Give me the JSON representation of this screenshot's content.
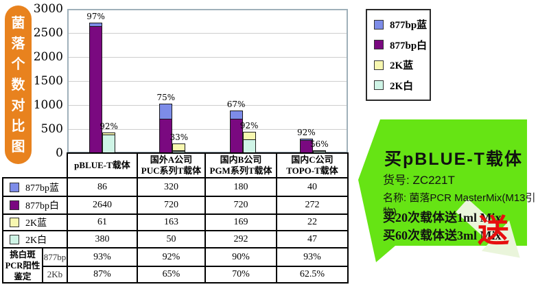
{
  "banner": {
    "text": "菌落个数对比图"
  },
  "chart_data": {
    "type": "bar",
    "stacked": true,
    "title": "菌落个数对比图",
    "ylabel": "菌落个数",
    "ylim": [
      0,
      3000
    ],
    "ytick_interval": 500,
    "yticks": [
      "0",
      "500",
      "1000",
      "1500",
      "2000",
      "2500",
      "3000"
    ],
    "grid": true,
    "categories": [
      "pBLUE-T载体",
      "国外A公司 PUC系列T载体",
      "国内B公司 PGM系列T载体",
      "国内C公司 TOPO-T载体"
    ],
    "category_lines": [
      [
        "pBLUE-T载体"
      ],
      [
        "国外A公司",
        "PUC系列T载体"
      ],
      [
        "国内B公司",
        "PGM系列T载体"
      ],
      [
        "国内C公司",
        "TOPO-T载体"
      ]
    ],
    "series": [
      {
        "name": "877bp蓝",
        "color": "#7D8CE8",
        "stack": "877bp",
        "values": [
          86,
          320,
          180,
          40
        ]
      },
      {
        "name": "877bp白",
        "color": "#7A0980",
        "stack": "877bp",
        "values": [
          2640,
          720,
          720,
          272
        ]
      },
      {
        "name": "2K蓝",
        "color": "#F7F7B0",
        "stack": "2K",
        "values": [
          61,
          163,
          169,
          22
        ]
      },
      {
        "name": "2K白",
        "color": "#CFF4E6",
        "stack": "2K",
        "values": [
          380,
          50,
          292,
          47
        ]
      }
    ],
    "percent_labels": [
      [
        "97%",
        "92%"
      ],
      [
        "75%",
        "33%"
      ],
      [
        "67%",
        "92%"
      ],
      [
        "92%",
        "56%"
      ]
    ],
    "legend_position": "top-right"
  },
  "legend": {
    "items": [
      {
        "label": "877bp蓝",
        "color": "#7D8CE8"
      },
      {
        "label": "877bp白",
        "color": "#7A0980"
      },
      {
        "label": "2K蓝",
        "color": "#F7F7B0"
      },
      {
        "label": "2K白",
        "color": "#CFF4E6"
      }
    ]
  },
  "table": {
    "column_headers": [
      "pBLUE-T载体",
      "国外A公司 PUC系列T载体",
      "国内B公司 PGM系列T载体",
      "国内C公司 TOPO-T载体"
    ],
    "rows": [
      {
        "label": "877bp蓝",
        "swatch": "#7D8CE8",
        "values": [
          "86",
          "320",
          "180",
          "40"
        ]
      },
      {
        "label": "877bp白",
        "swatch": "#7A0980",
        "values": [
          "2640",
          "720",
          "720",
          "272"
        ]
      },
      {
        "label": "2K蓝",
        "swatch": "#F7F7B0",
        "values": [
          "61",
          "163",
          "169",
          "22"
        ]
      },
      {
        "label": "2K白",
        "swatch": "#CFF4E6",
        "values": [
          "380",
          "50",
          "292",
          "47"
        ]
      }
    ],
    "pcr_group_label": "挑白斑PCR阳性鉴定",
    "pcr_group_label_lines": [
      "挑白斑",
      "PCR阳性",
      "鉴定"
    ],
    "pcr_rows": [
      {
        "label": "877bp",
        "values": [
          "93%",
          "92%",
          "90%",
          "93%"
        ]
      },
      {
        "label": "2Kb",
        "values": [
          "87%",
          "65%",
          "70%",
          "62.5%"
        ]
      }
    ]
  },
  "promo": {
    "title": "买pBLUE-T载体",
    "sku_line": "货号: ZC221T",
    "name_line": "名称: 菌落PCR MasterMix(M13引物)",
    "offer1": "买20次载体送1ml Mix",
    "offer2": "买60次载体送3ml Mix",
    "gift": "送"
  },
  "colors": {
    "banner_orange": "#E8821E",
    "arrow_green": "#66E414",
    "gift_arrow_pale": "#EAF5DB",
    "gift_red": "#E60F0F",
    "plot_border": "#9FB0BA"
  }
}
